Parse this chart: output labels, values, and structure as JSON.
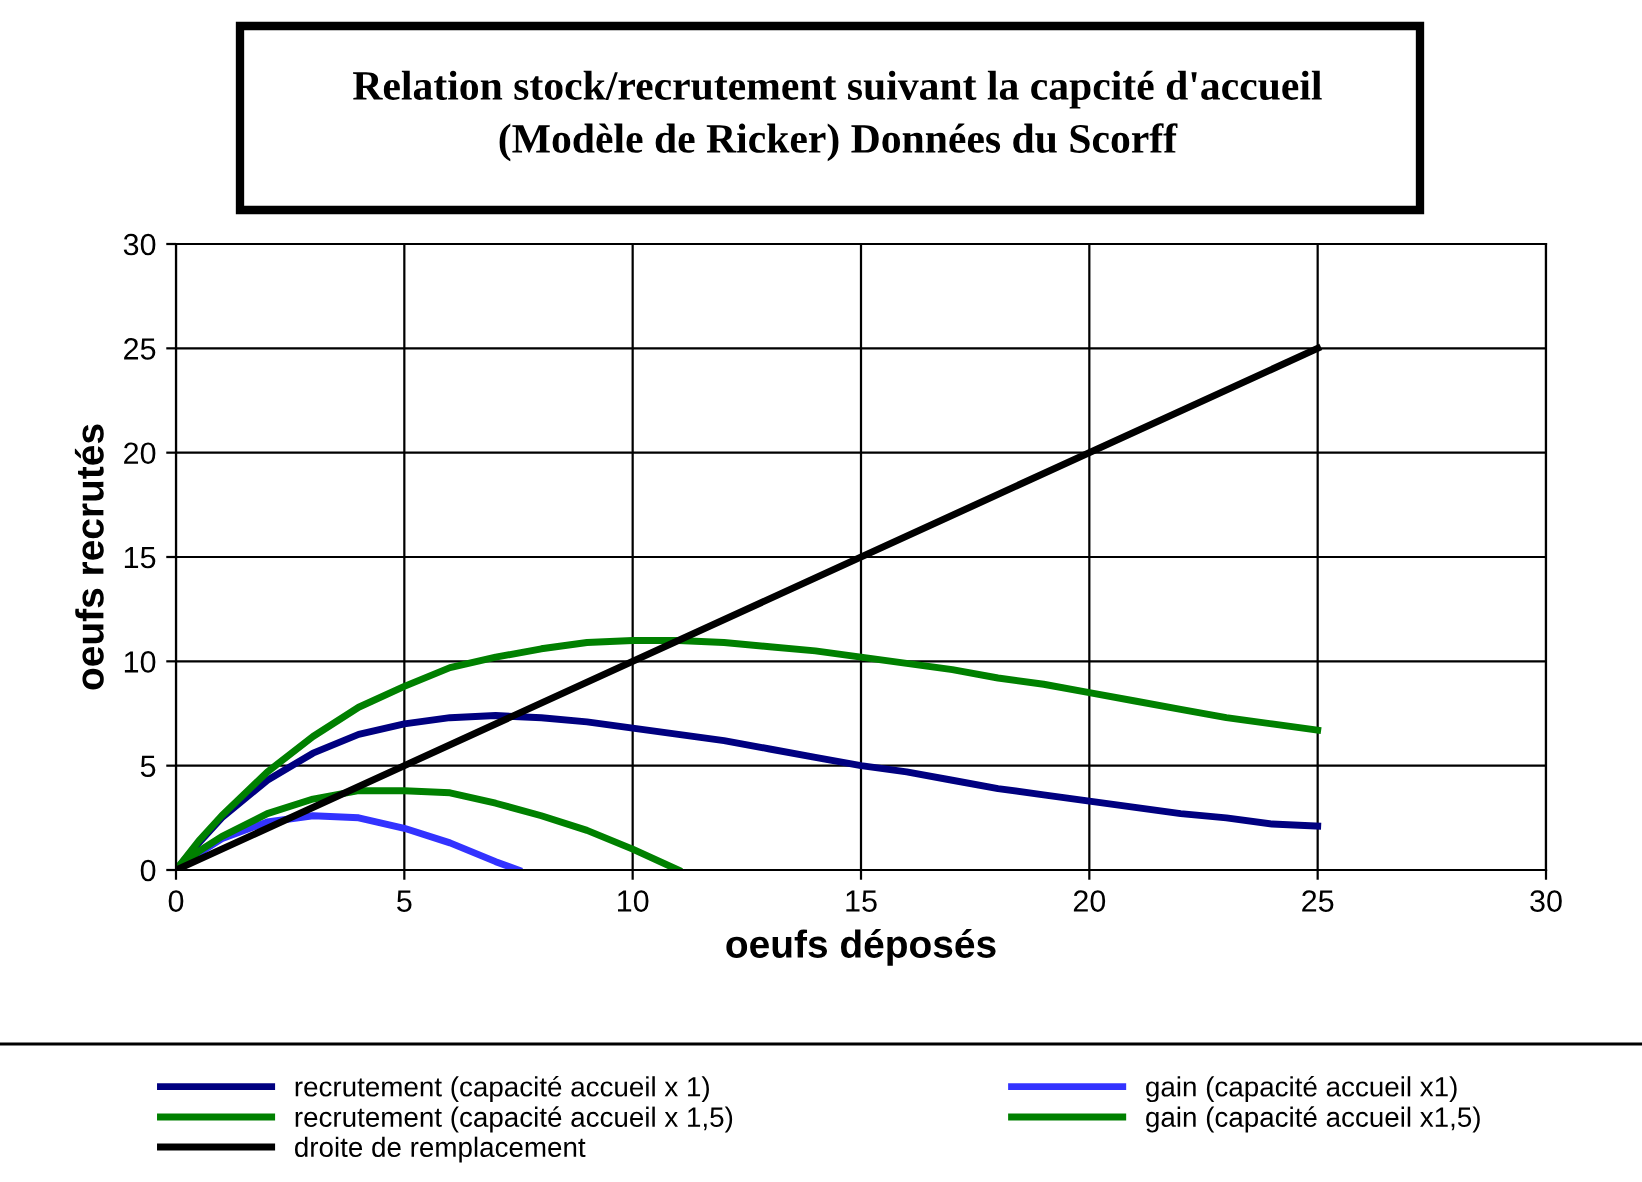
{
  "chart_data": {
    "type": "line",
    "title": "Relation stock/recrutement suivant la capcité d'accueil\n(Modèle de Ricker) Données du Scorff",
    "xlabel": "oeufs déposés",
    "ylabel": "oeufs recrutés",
    "xlim": [
      0,
      30
    ],
    "ylim": [
      0,
      30
    ],
    "xticks": [
      0,
      5,
      10,
      15,
      20,
      25,
      30
    ],
    "yticks": [
      0,
      5,
      10,
      15,
      20,
      25,
      30
    ],
    "grid": true,
    "legend": "bottom",
    "marker": "none",
    "series": [
      {
        "name": "recrutement (capacité accueil x 1)",
        "color": "#000080",
        "x": [
          0,
          0.5,
          1,
          2,
          3,
          4,
          5,
          6,
          7,
          8,
          9,
          10,
          11,
          12,
          13,
          14,
          15,
          16,
          17,
          18,
          19,
          20,
          21,
          22,
          23,
          24,
          25
        ],
        "values": [
          0,
          1.3,
          2.5,
          4.3,
          5.6,
          6.5,
          7,
          7.3,
          7.4,
          7.3,
          7.1,
          6.8,
          6.5,
          6.2,
          5.8,
          5.4,
          5,
          4.7,
          4.3,
          3.9,
          3.6,
          3.3,
          3,
          2.7,
          2.5,
          2.2,
          2.1
        ]
      },
      {
        "name": "gain (capacité accueil x1)",
        "color": "#3333ff",
        "x": [
          0,
          0.5,
          1,
          2,
          3,
          4,
          5,
          6,
          7,
          7.5
        ],
        "values": [
          0,
          0.8,
          1.5,
          2.3,
          2.6,
          2.5,
          2,
          1.3,
          0.4,
          0
        ]
      },
      {
        "name": "recrutement (capacité accueil x 1,5)",
        "color": "#008000",
        "x": [
          0,
          0.5,
          1,
          2,
          3,
          4,
          5,
          6,
          7,
          8,
          9,
          10,
          11,
          12,
          13,
          14,
          15,
          16,
          17,
          18,
          19,
          20,
          21,
          22,
          23,
          24,
          25
        ],
        "values": [
          0,
          1.4,
          2.6,
          4.7,
          6.4,
          7.8,
          8.8,
          9.7,
          10.2,
          10.6,
          10.9,
          11,
          11,
          10.9,
          10.7,
          10.5,
          10.2,
          9.9,
          9.6,
          9.2,
          8.9,
          8.5,
          8.1,
          7.7,
          7.3,
          7,
          6.7
        ]
      },
      {
        "name": "gain (capacité accueil x1,5)",
        "color": "#008000",
        "x": [
          0,
          0.5,
          1,
          2,
          3,
          4,
          5,
          6,
          7,
          8,
          9,
          10,
          11
        ],
        "values": [
          0,
          0.9,
          1.6,
          2.7,
          3.4,
          3.8,
          3.8,
          3.7,
          3.2,
          2.6,
          1.9,
          1,
          0
        ]
      },
      {
        "name": "droite de remplacement",
        "color": "#000000",
        "x": [
          0,
          25
        ],
        "values": [
          0,
          25
        ]
      }
    ]
  }
}
